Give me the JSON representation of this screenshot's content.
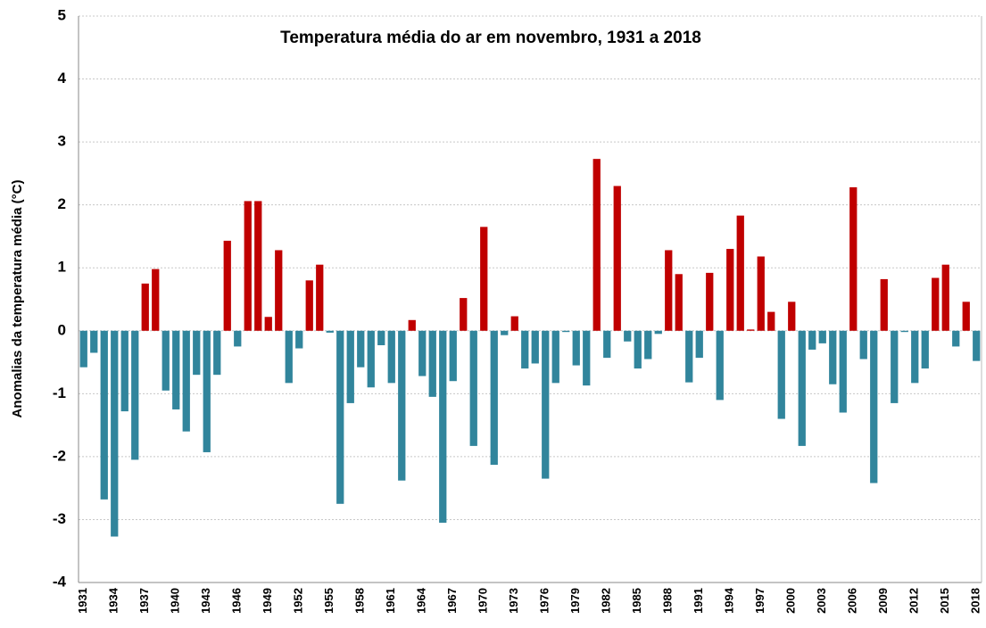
{
  "chart_data": {
    "type": "bar",
    "title": "Temperatura média do ar em novembro, 1931 a 2018",
    "y_label": "Anomalias da temperatura média (°C)",
    "categories": [
      "1931",
      null,
      null,
      "1934",
      null,
      null,
      "1937",
      null,
      null,
      "1940",
      null,
      null,
      "1943",
      null,
      null,
      "1946",
      null,
      null,
      "1949",
      null,
      null,
      "1952",
      null,
      null,
      "1955",
      null,
      null,
      "1958",
      null,
      null,
      "1961",
      null,
      null,
      "1964",
      null,
      null,
      "1967",
      null,
      null,
      "1970",
      null,
      null,
      "1973",
      null,
      null,
      "1976",
      null,
      null,
      "1979",
      null,
      null,
      "1982",
      null,
      null,
      "1985",
      null,
      null,
      "1988",
      null,
      null,
      "1991",
      null,
      null,
      "1994",
      null,
      null,
      "1997",
      null,
      null,
      "2000",
      null,
      null,
      "2003",
      null,
      null,
      "2006",
      null,
      null,
      "2009",
      null,
      null,
      "2012",
      null,
      null,
      "2015",
      null,
      null,
      "2018"
    ],
    "values": [
      -0.58,
      -0.35,
      -2.68,
      -3.27,
      -1.28,
      -2.05,
      0.75,
      0.98,
      -0.95,
      -1.25,
      -1.6,
      -0.7,
      -1.93,
      -0.7,
      1.43,
      -0.25,
      2.06,
      2.06,
      0.22,
      1.28,
      -0.83,
      -0.28,
      0.8,
      1.05,
      -0.03,
      -2.75,
      -1.15,
      -0.58,
      -0.9,
      -0.23,
      -0.83,
      -2.38,
      0.17,
      -0.72,
      -1.05,
      -3.05,
      -0.8,
      0.52,
      -1.83,
      1.65,
      -2.13,
      -0.07,
      0.23,
      -0.6,
      -0.52,
      -2.35,
      -0.83,
      -0.02,
      -0.55,
      -0.87,
      2.73,
      -0.43,
      2.3,
      -0.17,
      -0.6,
      -0.45,
      -0.05,
      1.28,
      0.9,
      -0.82,
      -0.43,
      0.92,
      -1.1,
      1.3,
      1.83,
      0.02,
      1.18,
      0.3,
      -1.4,
      0.46,
      -1.83,
      -0.3,
      -0.2,
      -0.85,
      -1.3,
      2.28,
      -0.45,
      -2.42,
      0.82,
      -1.15,
      -0.02,
      -0.83,
      -0.6,
      0.84,
      1.05,
      -0.25,
      0.46,
      -0.48
    ],
    "color_positive": "#c00000",
    "color_negative": "#31859c",
    "ylim": [
      -4,
      5
    ],
    "yticks": [
      -4,
      -3,
      -2,
      -1,
      0,
      1,
      2,
      3,
      4,
      5
    ],
    "grid": true
  }
}
